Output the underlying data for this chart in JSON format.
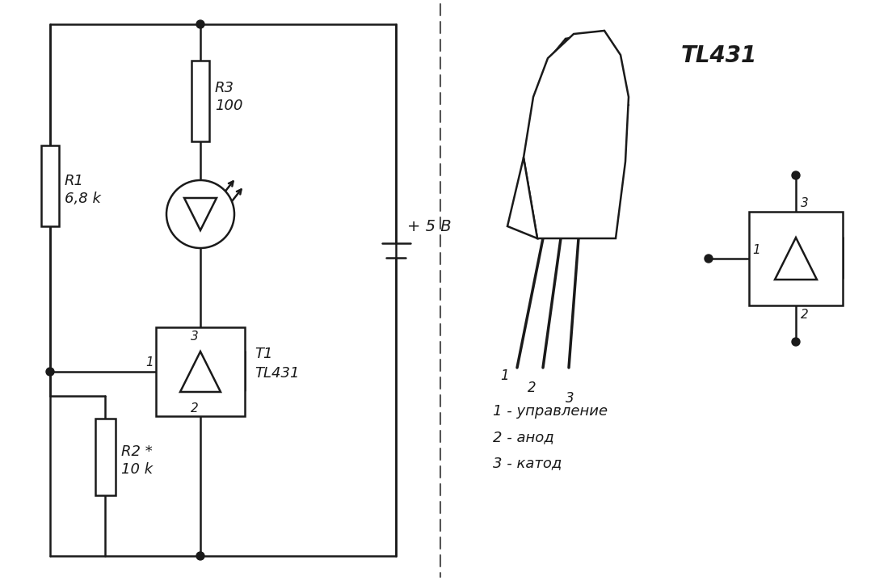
{
  "bg_color": "#ffffff",
  "line_color": "#1a1a1a",
  "circuit_label_R1": "R1\n6,8 k",
  "circuit_label_R2": "R2 *\n10 k",
  "circuit_label_R3": "R3\n100",
  "circuit_label_T1": "T1\nTL431",
  "circuit_label_V": "+ 5 B",
  "tl431_title": "TL431",
  "pin_labels": [
    "1 - управление",
    "2 - анод",
    "3 - катод"
  ]
}
